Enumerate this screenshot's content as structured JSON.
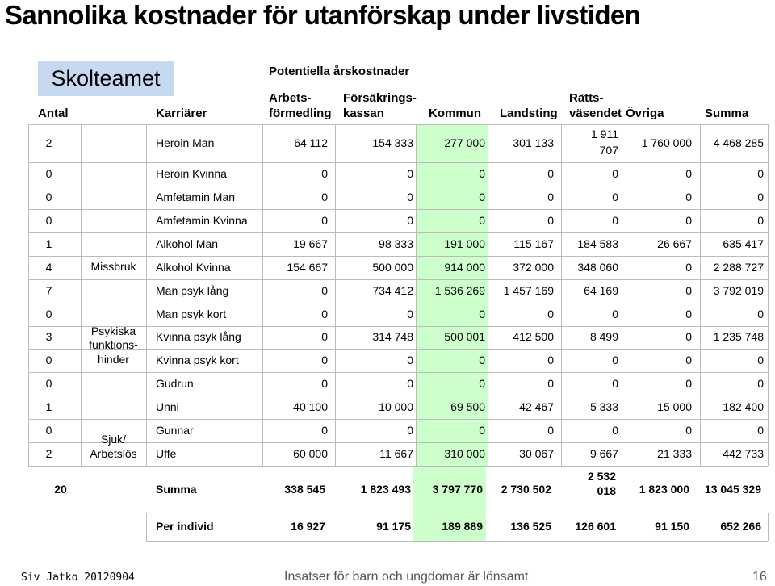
{
  "slide": {
    "title": "Sannolika kostnader för utanförskap under livstiden",
    "badge": "Skolteamet",
    "group_header": "Potentiella årskostnader"
  },
  "table": {
    "headers": {
      "antal": "Antal",
      "karriarer": "Karriärer",
      "arbetsformedling": [
        "Arbets-",
        "förmedling"
      ],
      "forsakringskassan": [
        "Försäkrings-",
        "kassan"
      ],
      "kommun": "Kommun",
      "landsting": "Landsting",
      "rattsvasendet": [
        "Rätts-",
        "väsendet"
      ],
      "ovriga": "Övriga",
      "summa": "Summa"
    },
    "groups": {
      "missbruk": "Missbruk",
      "psykiska": [
        "Psykiska",
        "funktions-",
        "hinder"
      ],
      "sjuk": [
        "Sjuk/",
        "Arbetslös"
      ]
    },
    "rows": [
      {
        "antal": "2",
        "name": "Heroin Man",
        "v": [
          "64 112",
          "154 333",
          "277 000",
          "301 133",
          [
            "1 911",
            "707"
          ],
          "1 760 000",
          "4 468 285"
        ]
      },
      {
        "antal": "0",
        "name": "Heroin Kvinna",
        "v": [
          "0",
          "0",
          "0",
          "0",
          "0",
          "0",
          "0"
        ]
      },
      {
        "antal": "0",
        "name": "Amfetamin Man",
        "v": [
          "0",
          "0",
          "0",
          "0",
          "0",
          "0",
          "0"
        ]
      },
      {
        "antal": "0",
        "name": "Amfetamin Kvinna",
        "v": [
          "0",
          "0",
          "0",
          "0",
          "0",
          "0",
          "0"
        ]
      },
      {
        "antal": "1",
        "name": "Alkohol Man",
        "v": [
          "19 667",
          "98 333",
          "191 000",
          "115 167",
          "184 583",
          "26 667",
          "635 417"
        ]
      },
      {
        "antal": "4",
        "name": "Alkohol Kvinna",
        "v": [
          "154 667",
          "500 000",
          "914 000",
          "372 000",
          "348 060",
          "0",
          "2 288 727"
        ]
      },
      {
        "antal": "7",
        "name": "Man psyk lång",
        "v": [
          "0",
          "734 412",
          "1 536 269",
          "1 457 169",
          "64 169",
          "0",
          "3 792 019"
        ]
      },
      {
        "antal": "0",
        "name": "Man psyk kort",
        "v": [
          "0",
          "0",
          "0",
          "0",
          "0",
          "0",
          "0"
        ]
      },
      {
        "antal": "3",
        "name": "Kvinna psyk lång",
        "v": [
          "0",
          "314 748",
          "500 001",
          "412 500",
          "8 499",
          "0",
          "1 235 748"
        ]
      },
      {
        "antal": "0",
        "name": "Kvinna psyk kort",
        "v": [
          "0",
          "0",
          "0",
          "0",
          "0",
          "0",
          "0"
        ]
      },
      {
        "antal": "0",
        "name": "Gudrun",
        "v": [
          "0",
          "0",
          "0",
          "0",
          "0",
          "0",
          "0"
        ]
      },
      {
        "antal": "1",
        "name": "Unni",
        "v": [
          "40 100",
          "10 000",
          "69 500",
          "42 467",
          "5 333",
          "15 000",
          "182 400"
        ]
      },
      {
        "antal": "0",
        "name": "Gunnar",
        "v": [
          "0",
          "0",
          "0",
          "0",
          "0",
          "0",
          "0"
        ]
      },
      {
        "antal": "2",
        "name": "Uffe",
        "v": [
          "60 000",
          "11 667",
          "310 000",
          "30 067",
          "9 667",
          "21 333",
          "442 733"
        ]
      }
    ],
    "summa": {
      "antal": "20",
      "label": "Summa",
      "v": [
        "338 545",
        "1 823 493",
        "3 797 770",
        "2 730 502",
        [
          "2 532",
          "018"
        ],
        "1 823 000",
        "13 045 329"
      ]
    },
    "per_individ": {
      "label": "Per individ",
      "v": [
        "16 927",
        "91 175",
        "189 889",
        "136 525",
        "126 601",
        "91 150",
        "652 266"
      ]
    },
    "highlight_color": "#ccffcc"
  },
  "footer": {
    "author": "Siv Jatko 20120904",
    "center": "Insatser för barn och ungdomar är lönsamt",
    "page": "16"
  }
}
